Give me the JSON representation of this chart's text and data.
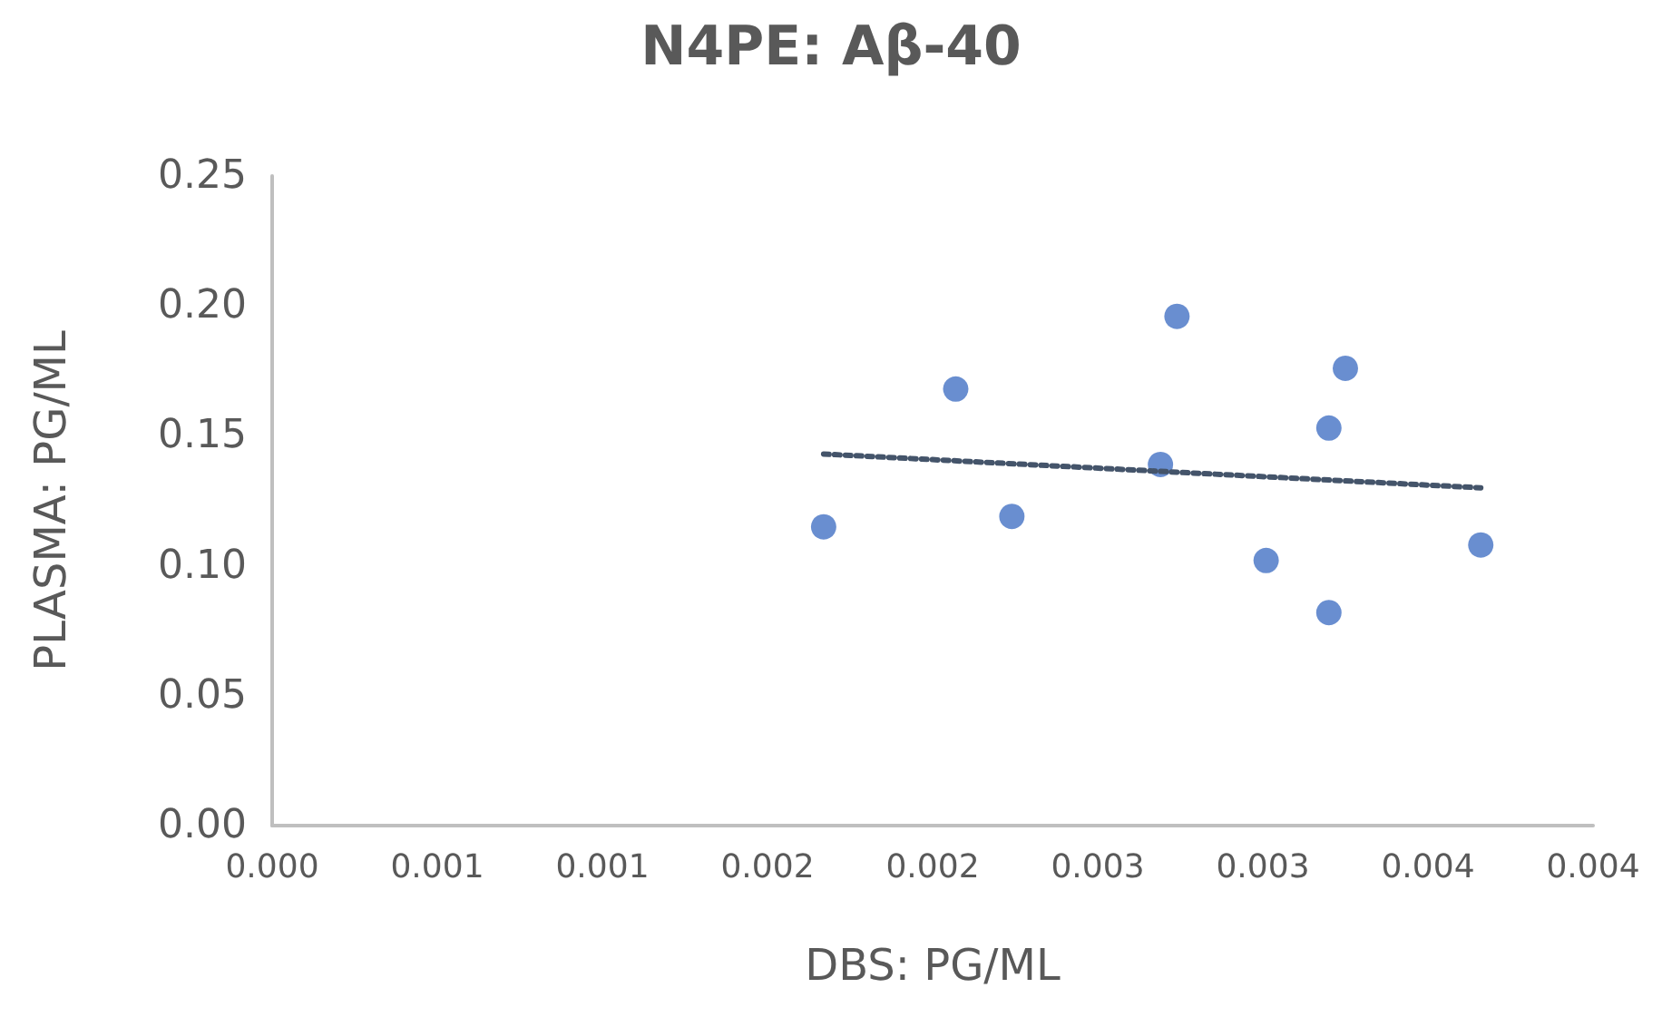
{
  "chart_data": {
    "type": "scatter",
    "title": "N4PE: Aβ-40",
    "xlabel": "DBS: PG/ML",
    "ylabel": "PLASMA: PG/ML",
    "xlim": [
      0,
      0.004
    ],
    "ylim": [
      0,
      0.25
    ],
    "xticks": [
      {
        "value": 0,
        "label": "0.000"
      },
      {
        "value": 0.0005,
        "label": "0.001"
      },
      {
        "value": 0.001,
        "label": "0.001"
      },
      {
        "value": 0.0015,
        "label": "0.002"
      },
      {
        "value": 0.002,
        "label": "0.002"
      },
      {
        "value": 0.0025,
        "label": "0.003"
      },
      {
        "value": 0.003,
        "label": "0.003"
      },
      {
        "value": 0.0035,
        "label": "0.004"
      },
      {
        "value": 0.004,
        "label": "0.004"
      }
    ],
    "yticks": [
      {
        "value": 0,
        "label": "0.00"
      },
      {
        "value": 0.05,
        "label": "0.05"
      },
      {
        "value": 0.1,
        "label": "0.10"
      },
      {
        "value": 0.15,
        "label": "0.15"
      },
      {
        "value": 0.2,
        "label": "0.20"
      },
      {
        "value": 0.25,
        "label": "0.25"
      }
    ],
    "grid": false,
    "series": [
      {
        "marker": "circle",
        "color": "#4472c4",
        "x": [
          0.00167,
          0.00207,
          0.00224,
          0.00269,
          0.00274,
          0.00301,
          0.0032,
          0.0032,
          0.00325,
          0.00366
        ],
        "values": [
          0.115,
          0.168,
          0.119,
          0.139,
          0.196,
          0.102,
          0.082,
          0.153,
          0.176,
          0.108
        ]
      },
      {
        "type": "line",
        "marker": "none",
        "line_style": "dotted",
        "color": "#44546a",
        "x": [
          0.00167,
          0.00366
        ],
        "values": [
          0.143,
          0.13
        ]
      }
    ]
  }
}
